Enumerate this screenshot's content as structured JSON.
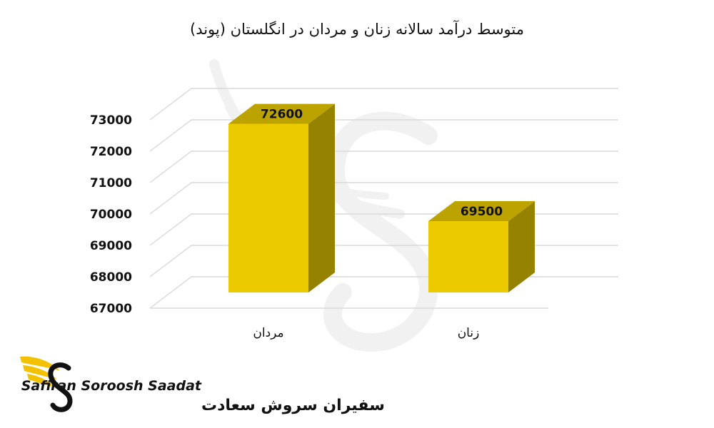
{
  "chart_data": {
    "type": "bar",
    "title": "متوسط درآمد سالانه زنان و مردان در انگلستان (پوند)",
    "categories": [
      "مردان",
      "زنان"
    ],
    "values": [
      72600,
      69500
    ],
    "data_labels": [
      "72600",
      "69500"
    ],
    "ylim": [
      67000,
      73000
    ],
    "y_ticks": [
      "67000",
      "68000",
      "69000",
      "70000",
      "71000",
      "72000",
      "73000"
    ],
    "grid": true,
    "legend": "none",
    "style": "3d-column",
    "colors": {
      "front": "#EBCB00",
      "side": "#958300",
      "top": "#BCA300",
      "grid": "#d9d9d9"
    }
  },
  "logo": {
    "name_latin": "Safiran Soroosh Saadat",
    "name_fa": "سفیران سروش سعادت",
    "accent": "#F2C200"
  },
  "watermark": {
    "icon": "swan-s-icon"
  }
}
